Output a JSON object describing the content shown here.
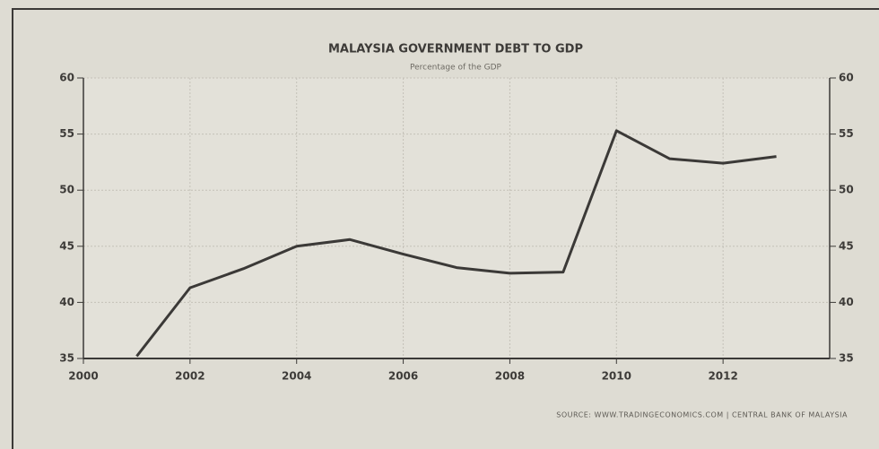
{
  "chart_data": {
    "type": "line",
    "title": "MALAYSIA GOVERNMENT DEBT TO GDP",
    "subtitle": "Percentage of the GDP",
    "source": "SOURCE: WWW.TRADINGECONOMICS.COM | CENTRAL BANK OF MALAYSIA",
    "x": [
      2001,
      2002,
      2003,
      2004,
      2005,
      2006,
      2007,
      2008,
      2009,
      2010,
      2011,
      2012,
      2013
    ],
    "values": [
      35.2,
      41.3,
      43.0,
      45.0,
      45.6,
      44.3,
      43.1,
      42.6,
      42.7,
      55.3,
      52.8,
      52.4,
      53.0
    ],
    "color": "#3b3937",
    "xlim": [
      2000,
      2014
    ],
    "xticks": [
      2000,
      2002,
      2004,
      2006,
      2008,
      2010,
      2012
    ],
    "ylim": [
      35,
      60
    ],
    "yticks": [
      35,
      40,
      45,
      50,
      55,
      60
    ],
    "y2lim": [
      35,
      60
    ],
    "y2ticks": [
      35,
      40,
      45,
      50,
      55,
      60
    ],
    "grid": true
  }
}
